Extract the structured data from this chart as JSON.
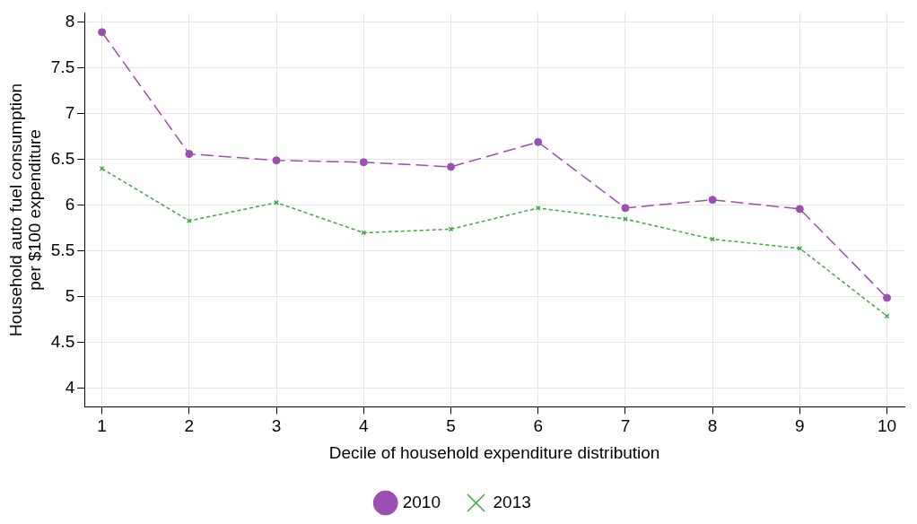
{
  "chart_data": {
    "type": "line",
    "xlabel": "Decile of household expenditure distribution",
    "ylabel": "Household auto fuel consumption per $100 expenditure",
    "x": [
      1,
      2,
      3,
      4,
      5,
      6,
      7,
      8,
      9,
      10
    ],
    "series": [
      {
        "name": "2010",
        "color": "#9b4fb3",
        "marker": "circle",
        "line_style": "dashed",
        "values": [
          7.89,
          6.56,
          6.49,
          6.47,
          6.42,
          6.69,
          5.97,
          6.06,
          5.96,
          4.99
        ]
      },
      {
        "name": "2013",
        "color": "#3ea83e",
        "marker": "cross",
        "line_style": "dotted",
        "values": [
          6.4,
          5.83,
          6.03,
          5.7,
          5.74,
          5.97,
          5.85,
          5.63,
          5.53,
          4.79
        ]
      }
    ],
    "xlim": [
      0.8,
      10.2
    ],
    "xticks": [
      1,
      2,
      3,
      4,
      5,
      6,
      7,
      8,
      9,
      10
    ],
    "ylim": [
      3.8,
      8.1
    ],
    "yticks": [
      4,
      4.5,
      5,
      5.5,
      6,
      6.5,
      7,
      7.5,
      8
    ],
    "grid": true,
    "legend": "bottom"
  }
}
